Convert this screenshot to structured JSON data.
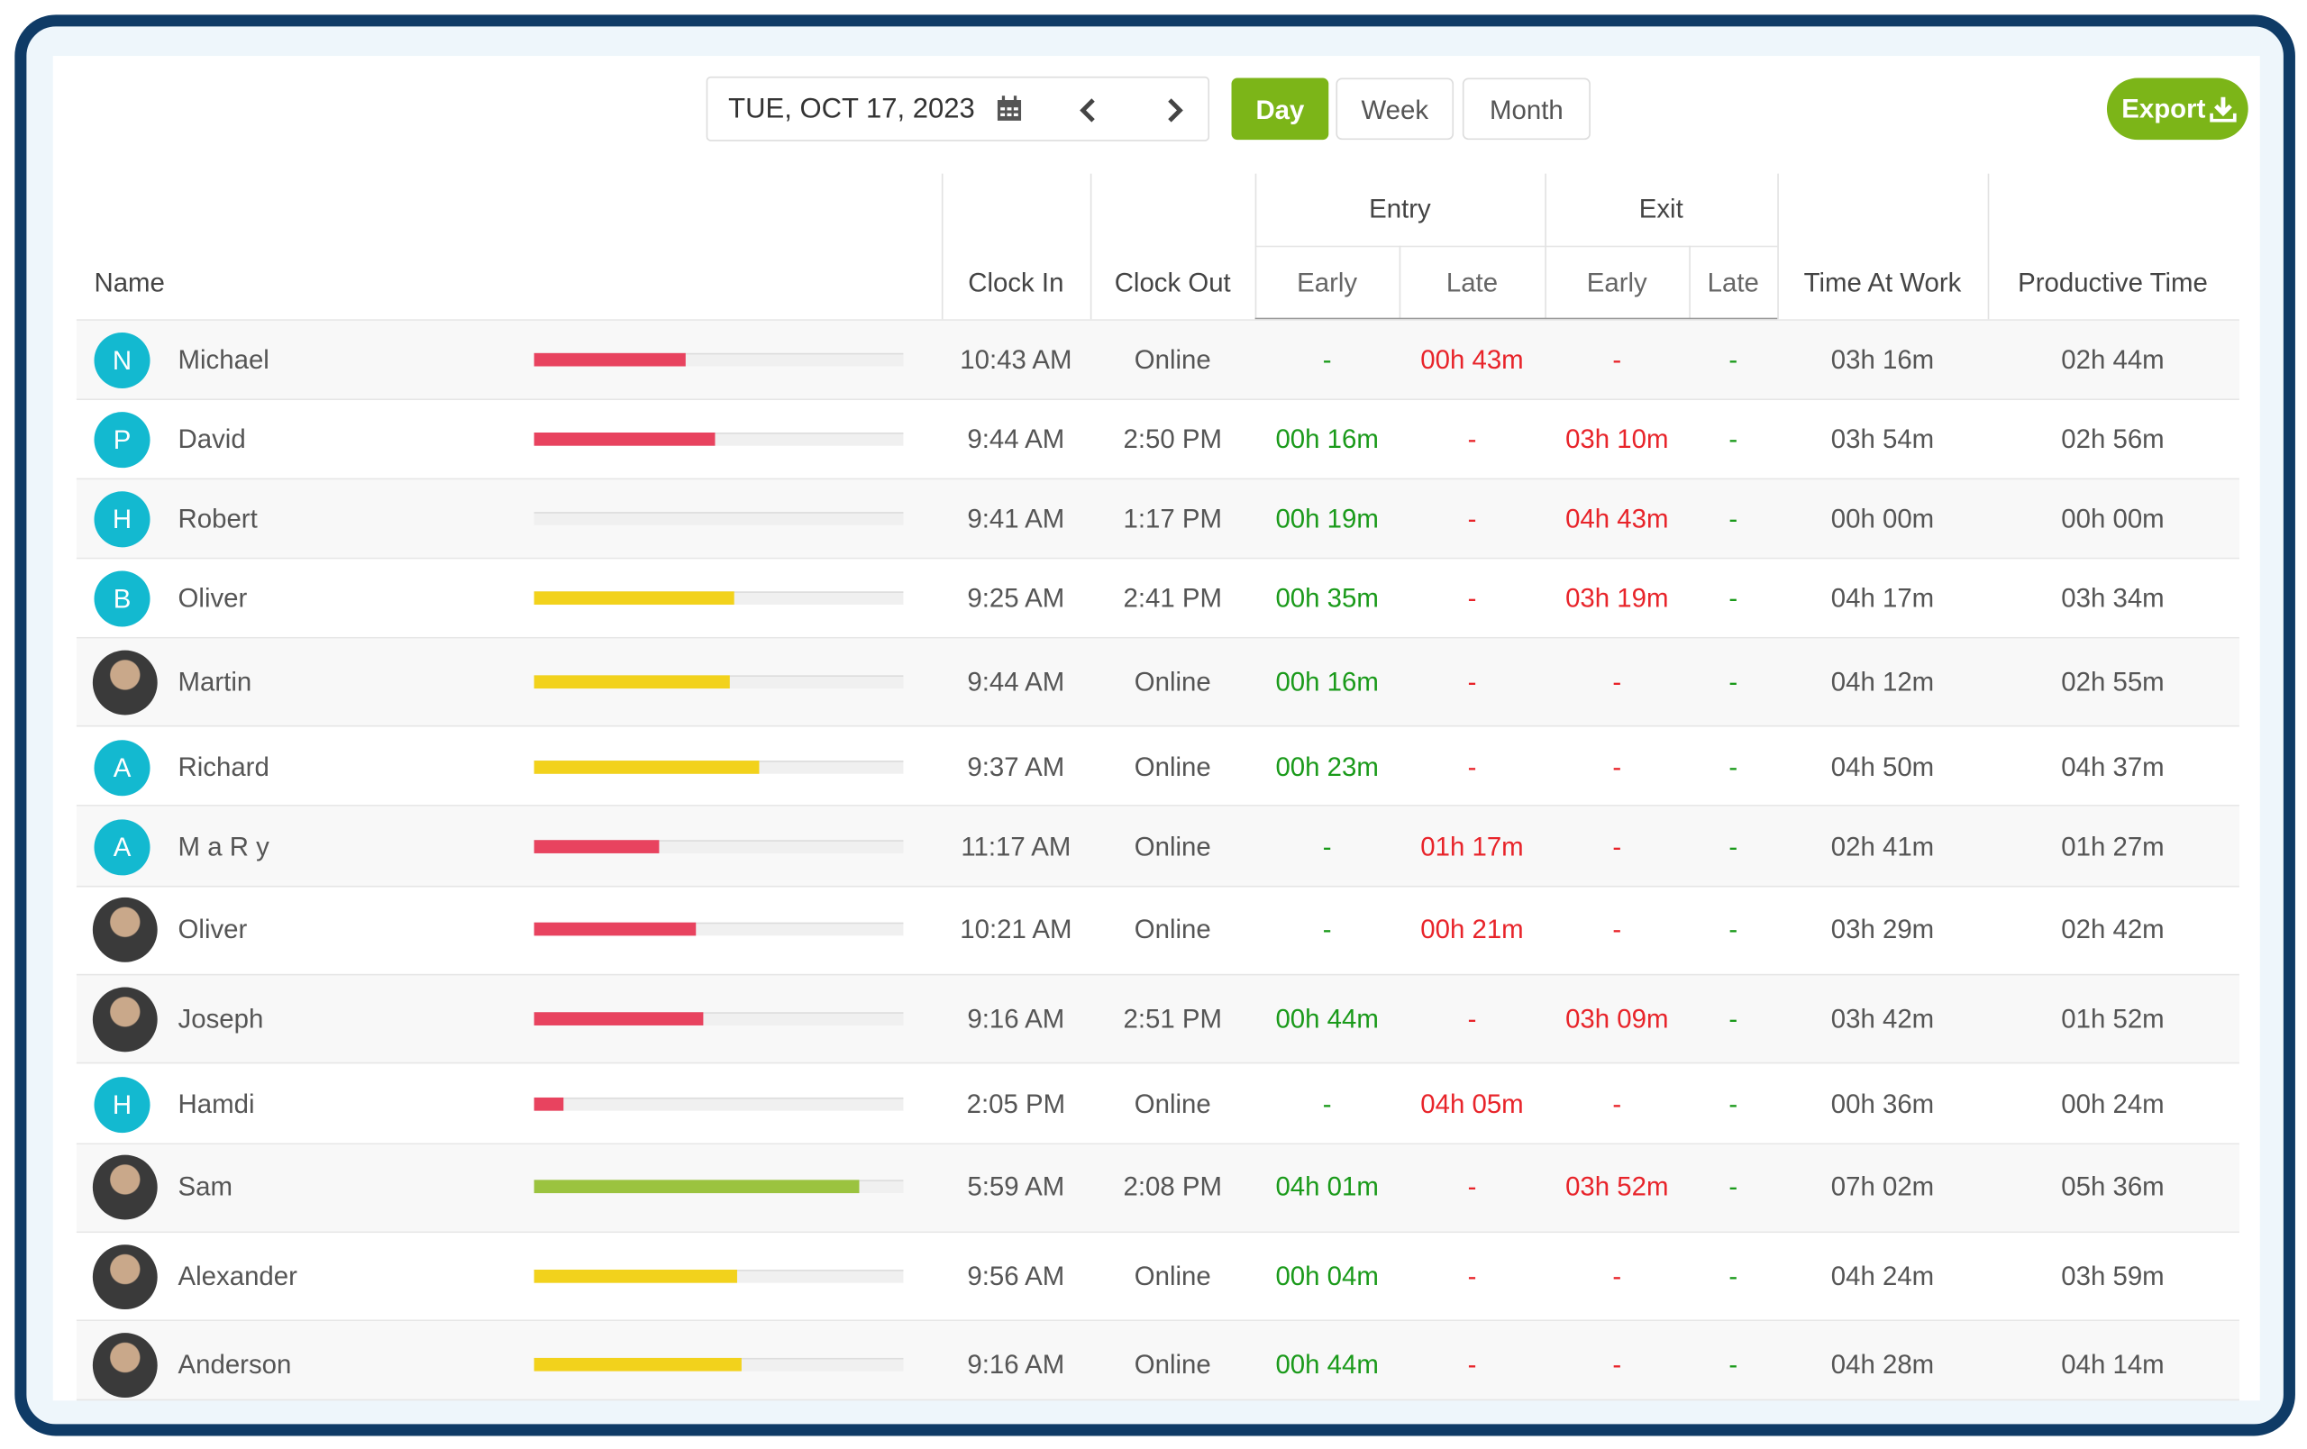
{
  "toolbar": {
    "date": "TUE, OCT 17, 2023",
    "views": [
      "Day",
      "Week",
      "Month"
    ],
    "active_view": "Day",
    "export": "Export"
  },
  "table": {
    "columns": [
      "Name",
      "Clock In",
      "Clock Out"
    ],
    "groups": [
      {
        "label": "Entry",
        "columns": [
          "Early",
          "Late"
        ]
      },
      {
        "label": "Exit",
        "columns": [
          "Early",
          "Late"
        ]
      }
    ],
    "tail_columns": [
      "Time At Work",
      "Productive Time"
    ],
    "rows": [
      {
        "avatar": "N",
        "name": "Michael",
        "progress": 41,
        "bar_color": "#e8435f",
        "cells": [
          "10:43 AM",
          "Online",
          "-",
          "00h 43m",
          "-",
          "-",
          "03h 16m",
          "02h 44m"
        ]
      },
      {
        "avatar": "P",
        "name": "David",
        "progress": 49,
        "bar_color": "#e8435f",
        "cells": [
          "9:44 AM",
          "2:50 PM",
          "00h 16m",
          "-",
          "03h 10m",
          "-",
          "03h 54m",
          "02h 56m"
        ]
      },
      {
        "avatar": "H",
        "name": "Robert",
        "progress": 0,
        "bar_color": "#e8435f",
        "cells": [
          "9:41 AM",
          "1:17 PM",
          "00h 19m",
          "-",
          "04h 43m",
          "-",
          "00h 00m",
          "00h 00m"
        ]
      },
      {
        "avatar": "B",
        "name": "Oliver",
        "progress": 54,
        "bar_color": "#f2d21c",
        "cells": [
          "9:25 AM",
          "2:41 PM",
          "00h 35m",
          "-",
          "03h 19m",
          "-",
          "04h 17m",
          "03h 34m"
        ]
      },
      {
        "name": "Martin",
        "progress": 53,
        "bar_color": "#f2d21c",
        "cells": [
          "9:44 AM",
          "Online",
          "00h 16m",
          "-",
          "-",
          "-",
          "04h 12m",
          "02h 55m"
        ]
      },
      {
        "avatar": "A",
        "name": "Richard",
        "progress": 61,
        "bar_color": "#f2d21c",
        "cells": [
          "9:37 AM",
          "Online",
          "00h 23m",
          "-",
          "-",
          "-",
          "04h 50m",
          "04h 37m"
        ]
      },
      {
        "avatar": "A",
        "name": "M a R y",
        "progress": 34,
        "bar_color": "#e8435f",
        "cells": [
          "11:17 AM",
          "Online",
          "-",
          "01h 17m",
          "-",
          "-",
          "02h 41m",
          "01h 27m"
        ]
      },
      {
        "name": "Oliver",
        "progress": 44,
        "bar_color": "#e8435f",
        "cells": [
          "10:21 AM",
          "Online",
          "-",
          "00h 21m",
          "-",
          "-",
          "03h 29m",
          "02h 42m"
        ]
      },
      {
        "name": "Joseph",
        "progress": 46,
        "bar_color": "#e8435f",
        "cells": [
          "9:16 AM",
          "2:51 PM",
          "00h 44m",
          "-",
          "03h 09m",
          "-",
          "03h 42m",
          "01h 52m"
        ]
      },
      {
        "avatar": "H",
        "name": "Hamdi",
        "progress": 8,
        "bar_color": "#e8435f",
        "cells": [
          "2:05 PM",
          "Online",
          "-",
          "04h 05m",
          "-",
          "-",
          "00h 36m",
          "00h 24m"
        ]
      },
      {
        "name": "Sam",
        "progress": 88,
        "bar_color": "#9bc33f",
        "cells": [
          "5:59 AM",
          "2:08 PM",
          "04h 01m",
          "-",
          "03h 52m",
          "-",
          "07h 02m",
          "05h 36m"
        ]
      },
      {
        "name": "Alexander",
        "progress": 55,
        "bar_color": "#f2d21c",
        "cells": [
          "9:56 AM",
          "Online",
          "00h 04m",
          "-",
          "-",
          "-",
          "04h 24m",
          "03h 59m"
        ]
      },
      {
        "name": "Anderson",
        "progress": 56,
        "bar_color": "#f2d21c",
        "cells": [
          "9:16 AM",
          "Online",
          "00h 44m",
          "-",
          "-",
          "-",
          "04h 28m",
          "04h 14m"
        ]
      }
    ]
  }
}
